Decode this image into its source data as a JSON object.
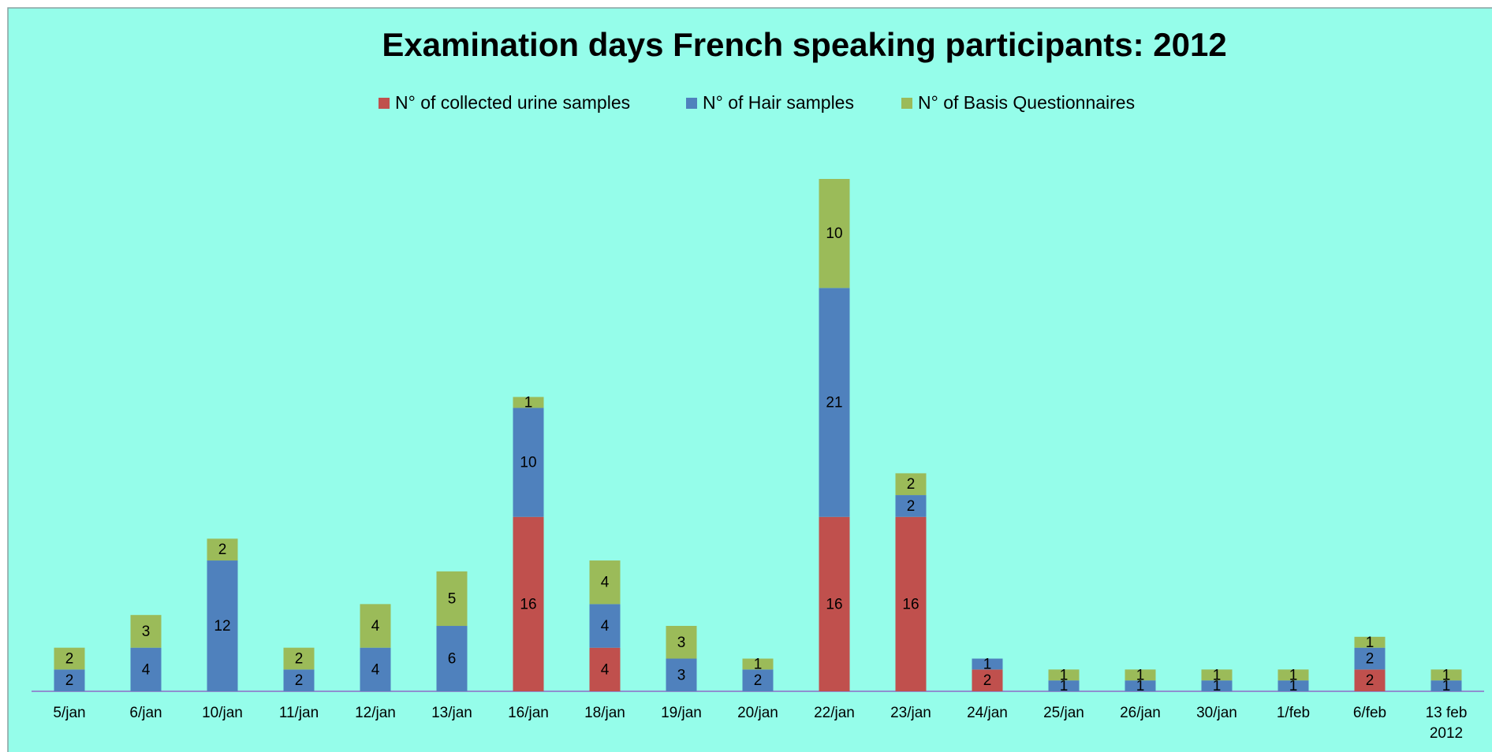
{
  "chart_data": {
    "type": "stacked_bar",
    "title": "Examination days  French speaking participants:  2012",
    "categories": [
      "5/jan",
      "6/jan",
      "10/jan",
      "11/jan",
      "12/jan",
      "13/jan",
      "16/jan",
      "18/jan",
      "19/jan",
      "20/jan",
      "22/jan",
      "23/jan",
      "24/jan",
      "25/jan",
      "26/jan",
      "30/jan",
      "1/feb",
      "6/feb",
      "13 feb 2012"
    ],
    "series": [
      {
        "name": "N° of collected urine samples",
        "color": "#c0504d",
        "values": [
          null,
          null,
          null,
          null,
          null,
          null,
          16,
          4,
          null,
          null,
          16,
          16,
          2,
          null,
          null,
          null,
          null,
          2,
          null
        ]
      },
      {
        "name": "N° of Hair samples",
        "color": "#4f81bd",
        "values": [
          2,
          4,
          12,
          2,
          4,
          6,
          10,
          4,
          3,
          2,
          21,
          2,
          1,
          1,
          1,
          1,
          1,
          2,
          1
        ]
      },
      {
        "name": "N° of Basis Questionnaires",
        "color": "#9bbb59",
        "values": [
          2,
          3,
          2,
          2,
          4,
          5,
          1,
          4,
          3,
          1,
          10,
          2,
          null,
          1,
          1,
          1,
          1,
          1,
          1
        ]
      }
    ],
    "legend": "top"
  }
}
